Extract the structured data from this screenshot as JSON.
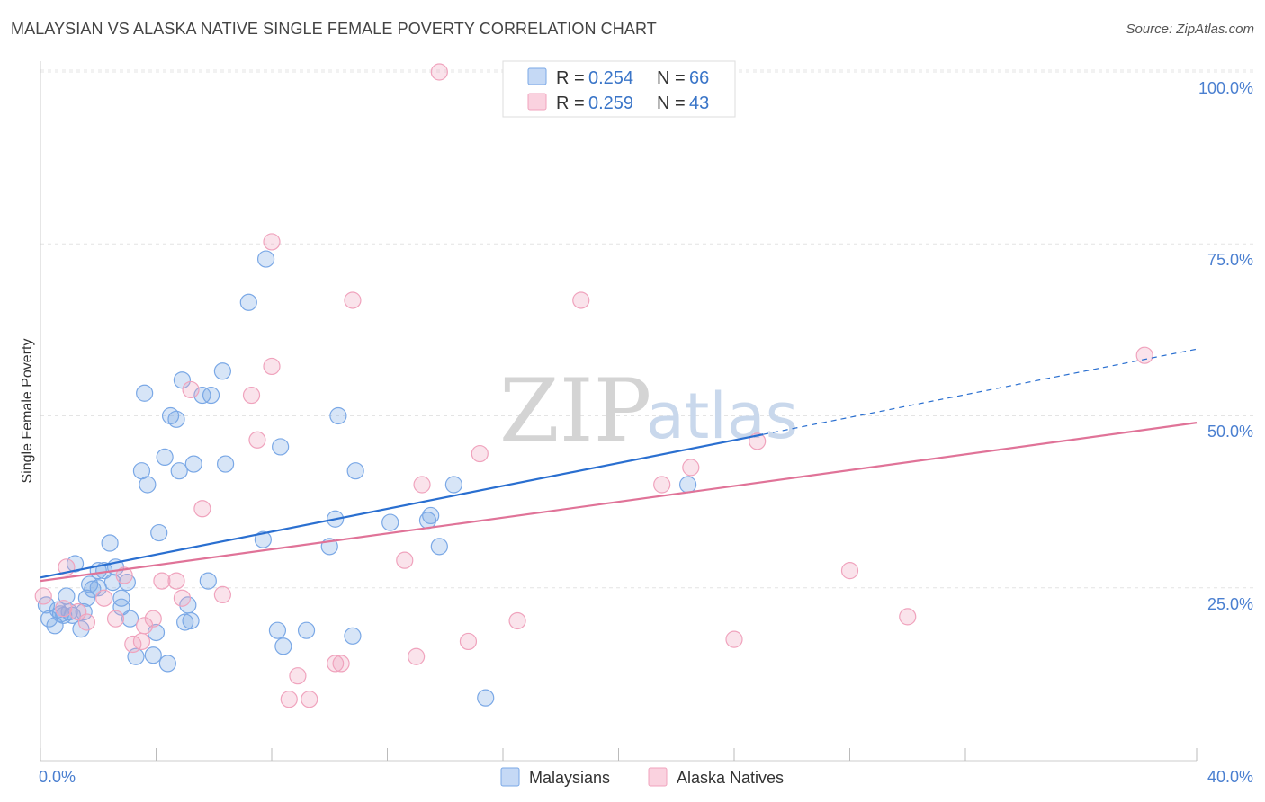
{
  "title": "MALAYSIAN VS ALASKA NATIVE SINGLE FEMALE POVERTY CORRELATION CHART",
  "source": "Source: ZipAtlas.com",
  "watermark": {
    "zip": "ZIP",
    "atlas": "atlas"
  },
  "legend": {
    "r_label": "R =",
    "n_label": "N =",
    "entries": [
      {
        "name": "Malaysians",
        "r": "0.254",
        "n": "66",
        "color": "#7aa8e6"
      },
      {
        "name": "Alaska Natives",
        "r": "0.259",
        "n": "43",
        "color": "#f0a3bd"
      }
    ]
  },
  "chart_data": {
    "type": "scatter",
    "title": "MALAYSIAN VS ALASKA NATIVE SINGLE FEMALE POVERTY CORRELATION CHART",
    "xlabel": "",
    "ylabel": "Single Female Poverty",
    "xlim": [
      0,
      40
    ],
    "ylim": [
      0,
      100
    ],
    "x_tick_labels": [
      "0.0%",
      "40.0%"
    ],
    "y_tick_labels": [
      "25.0%",
      "50.0%",
      "75.0%",
      "100.0%"
    ],
    "y_ticks": [
      25,
      50,
      75,
      100
    ],
    "grid": true,
    "series": [
      {
        "name": "Malaysians",
        "color": "#7aa8e6",
        "line_color": "#2a6fd0",
        "trend": {
          "x0": 0,
          "y0": 26.5,
          "x1": 25,
          "y1": 47.3,
          "dash_x1": 40,
          "dash_y1": 59.7
        },
        "points": [
          [
            0.2,
            22.5
          ],
          [
            0.3,
            20.5
          ],
          [
            0.5,
            19.5
          ],
          [
            0.6,
            21.8
          ],
          [
            0.7,
            21.2
          ],
          [
            0.8,
            21.0
          ],
          [
            0.9,
            23.8
          ],
          [
            1.0,
            21.5
          ],
          [
            1.1,
            21.0
          ],
          [
            1.2,
            28.5
          ],
          [
            1.4,
            19.0
          ],
          [
            1.5,
            21.5
          ],
          [
            1.6,
            23.5
          ],
          [
            1.7,
            25.5
          ],
          [
            1.8,
            24.8
          ],
          [
            2.0,
            27.5
          ],
          [
            2.0,
            25.0
          ],
          [
            2.2,
            27.5
          ],
          [
            2.4,
            31.5
          ],
          [
            2.5,
            25.8
          ],
          [
            2.6,
            28.0
          ],
          [
            2.8,
            23.5
          ],
          [
            2.8,
            22.2
          ],
          [
            3.0,
            25.8
          ],
          [
            3.1,
            20.5
          ],
          [
            3.3,
            15.0
          ],
          [
            3.5,
            42.0
          ],
          [
            3.6,
            53.3
          ],
          [
            3.7,
            40.0
          ],
          [
            3.9,
            15.2
          ],
          [
            4.0,
            18.5
          ],
          [
            4.1,
            33.0
          ],
          [
            4.3,
            44.0
          ],
          [
            4.4,
            14.0
          ],
          [
            4.5,
            50.0
          ],
          [
            4.7,
            49.5
          ],
          [
            4.8,
            42.0
          ],
          [
            4.9,
            55.2
          ],
          [
            5.0,
            20.0
          ],
          [
            5.1,
            22.5
          ],
          [
            5.2,
            20.2
          ],
          [
            5.3,
            43.0
          ],
          [
            5.6,
            53.0
          ],
          [
            5.8,
            26.0
          ],
          [
            5.9,
            53.0
          ],
          [
            6.3,
            56.5
          ],
          [
            6.4,
            43.0
          ],
          [
            7.2,
            66.5
          ],
          [
            7.7,
            32.0
          ],
          [
            7.8,
            72.8
          ],
          [
            8.2,
            18.8
          ],
          [
            8.3,
            45.5
          ],
          [
            8.4,
            16.5
          ],
          [
            9.2,
            18.8
          ],
          [
            10.0,
            31.0
          ],
          [
            10.2,
            35.0
          ],
          [
            10.3,
            50.0
          ],
          [
            10.8,
            18.0
          ],
          [
            10.9,
            42.0
          ],
          [
            12.1,
            34.5
          ],
          [
            13.5,
            35.5
          ],
          [
            13.8,
            31.0
          ],
          [
            14.3,
            40.0
          ],
          [
            15.4,
            9.0
          ],
          [
            22.4,
            40.0
          ],
          [
            13.4,
            34.8
          ]
        ]
      },
      {
        "name": "Alaska Natives",
        "color": "#f0a3bd",
        "line_color": "#e07398",
        "trend": {
          "x0": 0,
          "y0": 26.0,
          "x1": 40,
          "y1": 49.0
        },
        "points": [
          [
            0.1,
            23.8
          ],
          [
            0.8,
            22.0
          ],
          [
            0.9,
            28.0
          ],
          [
            1.3,
            21.5
          ],
          [
            1.6,
            20.0
          ],
          [
            2.2,
            23.5
          ],
          [
            2.6,
            20.5
          ],
          [
            2.9,
            26.8
          ],
          [
            3.2,
            16.8
          ],
          [
            3.5,
            17.2
          ],
          [
            3.6,
            19.5
          ],
          [
            3.9,
            20.5
          ],
          [
            4.2,
            26.0
          ],
          [
            4.7,
            26.0
          ],
          [
            4.9,
            23.5
          ],
          [
            5.2,
            53.8
          ],
          [
            5.6,
            36.5
          ],
          [
            6.3,
            24.0
          ],
          [
            7.3,
            53.0
          ],
          [
            7.5,
            46.5
          ],
          [
            8.0,
            75.3
          ],
          [
            8.0,
            57.2
          ],
          [
            8.6,
            8.8
          ],
          [
            8.9,
            12.2
          ],
          [
            9.3,
            8.8
          ],
          [
            10.2,
            14.0
          ],
          [
            10.4,
            14.0
          ],
          [
            10.8,
            66.8
          ],
          [
            12.6,
            29.0
          ],
          [
            13.0,
            15.0
          ],
          [
            13.2,
            40.0
          ],
          [
            13.8,
            100.0
          ],
          [
            14.8,
            17.2
          ],
          [
            15.2,
            44.5
          ],
          [
            16.5,
            20.2
          ],
          [
            18.7,
            66.8
          ],
          [
            21.5,
            40.0
          ],
          [
            22.5,
            42.5
          ],
          [
            24.0,
            17.5
          ],
          [
            24.8,
            46.3
          ],
          [
            28.0,
            27.5
          ],
          [
            30.0,
            20.8
          ],
          [
            38.2,
            58.8
          ]
        ]
      }
    ]
  }
}
